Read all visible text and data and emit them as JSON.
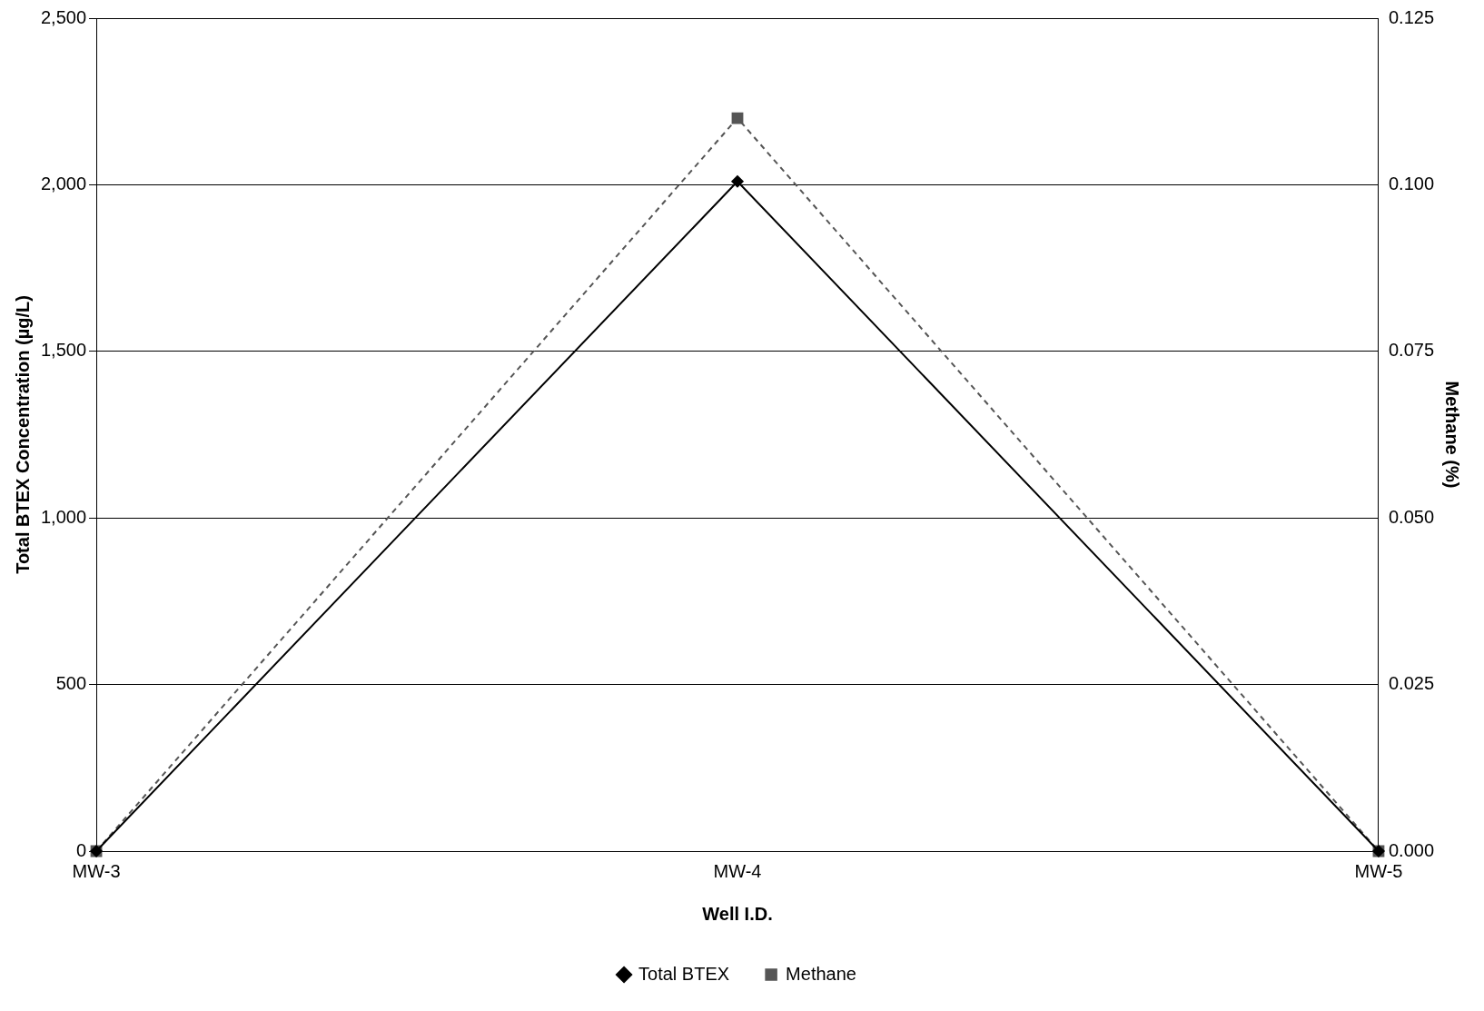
{
  "chart_data": {
    "type": "line",
    "xlabel": "Well I.D.",
    "ylabel": "Total BTEX Concentration (µg/L)",
    "y2label": "Methane (%)",
    "categories": [
      "MW-3",
      "MW-4",
      "MW-5"
    ],
    "series": [
      {
        "name": "Total BTEX",
        "color": "#000000",
        "values": [
          0,
          2010,
          0
        ],
        "marker": "diamond",
        "line_style": "solid"
      },
      {
        "name": "Methane",
        "color": "#555555",
        "values": [
          0,
          0.11,
          0
        ],
        "axis": "y2",
        "marker": "square",
        "line_style": "dashed"
      }
    ],
    "ylim": [
      0,
      2500
    ],
    "yticks": [
      0,
      {
        "value": 500,
        "label": "500"
      },
      {
        "value": 1000,
        "label": "1,000"
      },
      {
        "value": 1500,
        "label": "1,500"
      },
      {
        "value": 2000,
        "label": "2,000"
      },
      {
        "value": 2500,
        "label": "2,500"
      }
    ],
    "y2lim": [
      0,
      0.125
    ],
    "y2ticks": [
      {
        "value": 0,
        "label": "0.000"
      },
      {
        "value": 0.025,
        "label": "0.025"
      },
      {
        "value": 0.05,
        "label": "0.050"
      },
      {
        "value": 0.075,
        "label": "0.075"
      },
      {
        "value": 0.1,
        "label": "0.100"
      },
      {
        "value": 0.125,
        "label": "0.125"
      }
    ],
    "grid": "y",
    "legend": "bottom"
  }
}
